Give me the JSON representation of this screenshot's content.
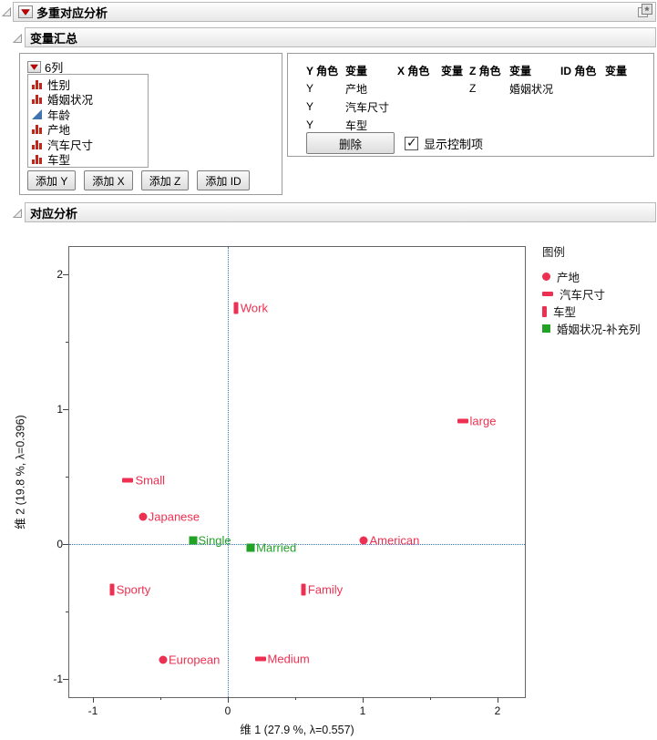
{
  "window": {
    "title": "多重对应分析"
  },
  "sections": {
    "variable_summary": "变量汇总",
    "correspondence": "对应分析"
  },
  "variables_panel": {
    "columns_label": "6列",
    "columns": [
      {
        "name": "性别",
        "type": "nominal"
      },
      {
        "name": "婚姻状况",
        "type": "nominal"
      },
      {
        "name": "年龄",
        "type": "continuous"
      },
      {
        "name": "产地",
        "type": "nominal"
      },
      {
        "name": "汽车尺寸",
        "type": "nominal"
      },
      {
        "name": "车型",
        "type": "nominal"
      }
    ],
    "buttons": [
      "添加 Y",
      "添加 X",
      "添加 Z",
      "添加 ID"
    ]
  },
  "roles_panel": {
    "headers": [
      "Y 角色",
      "变量",
      "X 角色",
      "变量",
      "Z 角色",
      "变量",
      "ID 角色",
      "变量"
    ],
    "rows": [
      {
        "y_role": "Y",
        "y_var": "产地",
        "x_role": "",
        "x_var": "",
        "z_role": "Z",
        "z_var": "婚姻状况",
        "id_role": "",
        "id_var": ""
      },
      {
        "y_role": "Y",
        "y_var": "汽车尺寸",
        "x_role": "",
        "x_var": "",
        "z_role": "",
        "z_var": "",
        "id_role": "",
        "id_var": ""
      },
      {
        "y_role": "Y",
        "y_var": "车型",
        "x_role": "",
        "x_var": "",
        "z_role": "",
        "z_var": "",
        "id_role": "",
        "id_var": ""
      }
    ],
    "delete_button": "删除",
    "checkbox_label": "显示控制项",
    "checkbox_checked": true
  },
  "colors": {
    "red_series": "#ED3051",
    "green_series": "#22A127",
    "reference_blue": "#3A76C8",
    "nominal_icon": "#C0271B",
    "continuous_icon": "#3F74AD"
  },
  "chart_data": {
    "type": "scatter",
    "xlabel": "维 1  (27.9 %, λ=0.557)",
    "ylabel": "维 2  (19.8 %, λ=0.396)",
    "xlim": [
      -1.18,
      2.22
    ],
    "ylim": [
      -1.15,
      2.2
    ],
    "x_ticks": [
      -1,
      0,
      1,
      2
    ],
    "y_ticks": [
      2,
      1,
      0,
      -1
    ],
    "grid": false,
    "reference_lines": {
      "x": 0,
      "y": 0
    },
    "legend_title": "图例",
    "legend_position": "right",
    "series": [
      {
        "name": "产地",
        "marker": "circle",
        "color": "#ED3051",
        "points": [
          {
            "label": "Japanese",
            "x": -0.63,
            "y": 0.2
          },
          {
            "label": "American",
            "x": 1.01,
            "y": 0.03
          },
          {
            "label": "European",
            "x": -0.48,
            "y": -0.86
          }
        ]
      },
      {
        "name": "汽车尺寸",
        "marker": "dash",
        "color": "#ED3051",
        "points": [
          {
            "label": "large",
            "x": 1.74,
            "y": 0.91
          },
          {
            "label": "Small",
            "x": -0.74,
            "y": 0.47
          },
          {
            "label": "Medium",
            "x": 0.24,
            "y": -0.85
          }
        ]
      },
      {
        "name": "车型",
        "marker": "vbar",
        "color": "#ED3051",
        "points": [
          {
            "label": "Work",
            "x": 0.06,
            "y": 1.75
          },
          {
            "label": "Sporty",
            "x": -0.86,
            "y": -0.34
          },
          {
            "label": "Family",
            "x": 0.56,
            "y": -0.34
          }
        ]
      },
      {
        "name": "婚姻状况-补充列",
        "marker": "square",
        "color": "#22A127",
        "points": [
          {
            "label": "Single",
            "x": -0.26,
            "y": 0.03
          },
          {
            "label": "Married",
            "x": 0.17,
            "y": -0.03
          }
        ]
      }
    ]
  }
}
